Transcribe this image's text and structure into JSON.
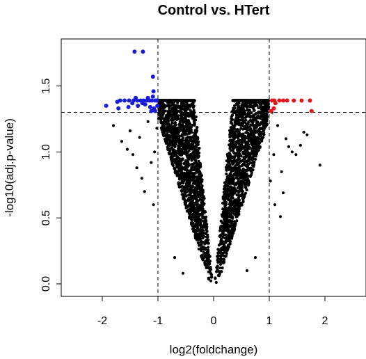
{
  "chart_data": {
    "type": "scatter",
    "title": "Control vs. HTert",
    "xlabel": "log2(foldchange)",
    "ylabel": "-log10(adj.p-value)",
    "xlim": [
      -2.5,
      2.5
    ],
    "ylim": [
      -0.05,
      1.82
    ],
    "xticks": [
      -2,
      -1,
      0,
      1,
      2
    ],
    "yticks": [
      0.0,
      0.5,
      1.0,
      1.5
    ],
    "xtick_labels": [
      "-2",
      "-1",
      "0",
      "1",
      "2"
    ],
    "ytick_labels": [
      "0.0",
      "0.5",
      "1.0",
      "1.5"
    ],
    "thresholds": {
      "fold_change": [
        -1,
        1
      ],
      "p_value": 1.3
    },
    "grid": false,
    "colors": {
      "not_significant": "#000000",
      "down_regulated": "#1a1adb",
      "up_regulated": "#e8141a"
    },
    "series": [
      {
        "color": "#1a1adb",
        "points": [
          [
            -1.42,
            1.76
          ],
          [
            -1.27,
            1.76
          ],
          [
            -1.09,
            1.57
          ],
          [
            -1.08,
            1.46
          ],
          [
            -1.93,
            1.35
          ],
          [
            -1.73,
            1.38
          ],
          [
            -1.68,
            1.39
          ],
          [
            -1.6,
            1.39
          ],
          [
            -1.52,
            1.39
          ],
          [
            -1.44,
            1.39
          ],
          [
            -1.37,
            1.39
          ],
          [
            -1.31,
            1.39
          ],
          [
            -1.26,
            1.39
          ],
          [
            -1.2,
            1.39
          ],
          [
            -1.15,
            1.39
          ],
          [
            -1.11,
            1.39
          ],
          [
            -1.05,
            1.39
          ],
          [
            -1.02,
            1.39
          ],
          [
            -1.71,
            1.33
          ],
          [
            -1.53,
            1.34
          ],
          [
            -1.36,
            1.35
          ],
          [
            -1.23,
            1.36
          ],
          [
            -1.14,
            1.34
          ],
          [
            -1.07,
            1.33
          ],
          [
            -1.01,
            1.35
          ],
          [
            -1.12,
            1.31
          ],
          [
            -1.05,
            1.31
          ],
          [
            -1.18,
            1.41
          ],
          [
            -1.4,
            1.41
          ],
          [
            -1.09,
            1.42
          ],
          [
            -1.28,
            1.37
          ],
          [
            -1.46,
            1.37
          ]
        ]
      },
      {
        "color": "#e8141a",
        "points": [
          [
            1.05,
            1.39
          ],
          [
            1.09,
            1.39
          ],
          [
            1.11,
            1.37
          ],
          [
            1.18,
            1.39
          ],
          [
            1.25,
            1.39
          ],
          [
            1.32,
            1.39
          ],
          [
            1.44,
            1.39
          ],
          [
            1.58,
            1.39
          ],
          [
            1.73,
            1.39
          ],
          [
            1.76,
            1.31
          ],
          [
            1.03,
            1.31
          ],
          [
            1.08,
            1.33
          ]
        ]
      }
    ]
  }
}
